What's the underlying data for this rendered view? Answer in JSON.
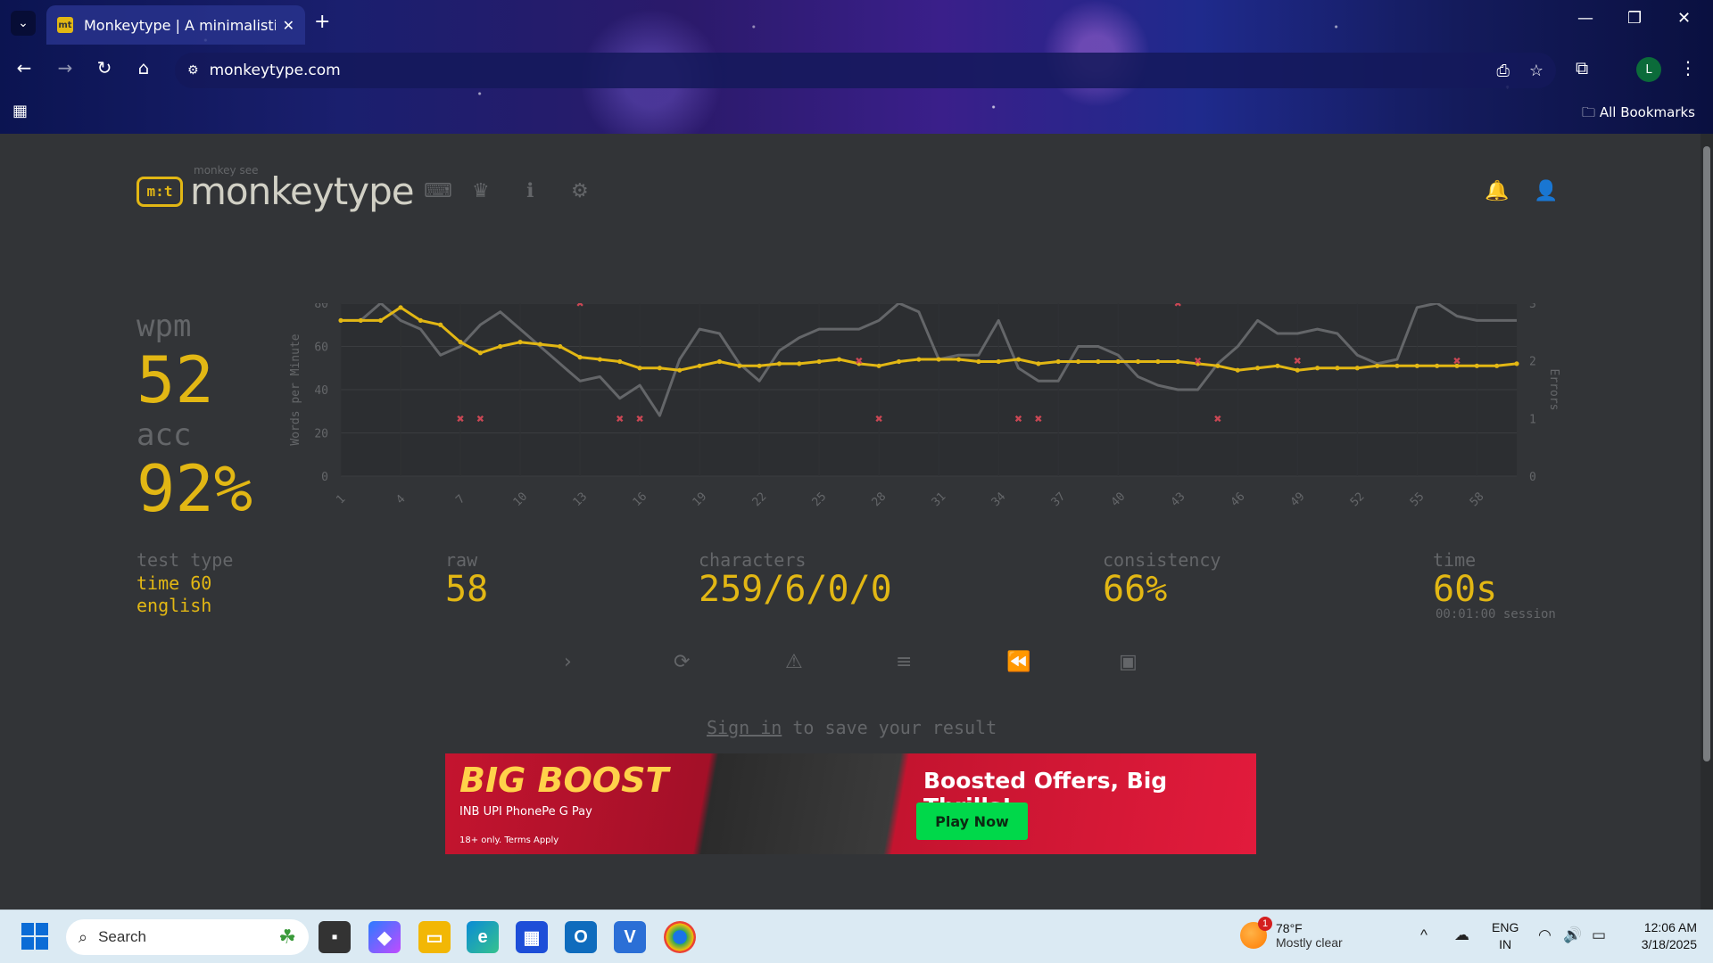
{
  "browser": {
    "tab_title": "Monkeytype | A minimalistic, cu",
    "tab_favicon": "mt",
    "url": "monkeytype.com",
    "profile_initial": "L",
    "all_bookmarks": "All Bookmarks"
  },
  "site": {
    "logo_small": "monkey see",
    "logo_text": "monkeytype",
    "logo_badge": "m:t"
  },
  "stats": {
    "wpm_label": "wpm",
    "wpm": "52",
    "acc_label": "acc",
    "acc": "92%",
    "test_type_label": "test type",
    "test_type_line1": "time 60",
    "test_type_line2": "english",
    "raw_label": "raw",
    "raw": "58",
    "characters_label": "characters",
    "characters": "259/6/0/0",
    "consistency_label": "consistency",
    "consistency": "66%",
    "time_label": "time",
    "time": "60s",
    "session": "00:01:00 session"
  },
  "chart_data": {
    "type": "line",
    "ylabel": "Words per Minute",
    "y2label": "Errors",
    "ylim": [
      0,
      80
    ],
    "y2lim": [
      0,
      3
    ],
    "y_ticks": [
      0,
      20,
      40,
      60,
      80
    ],
    "y2_ticks": [
      0,
      1,
      2,
      3
    ],
    "x_ticks": [
      1,
      4,
      7,
      10,
      13,
      16,
      19,
      22,
      25,
      28,
      31,
      34,
      37,
      40,
      43,
      46,
      49,
      52,
      55,
      58
    ],
    "x": [
      1,
      2,
      3,
      4,
      5,
      6,
      7,
      8,
      9,
      10,
      11,
      12,
      13,
      14,
      15,
      16,
      17,
      18,
      19,
      20,
      21,
      22,
      23,
      24,
      25,
      26,
      27,
      28,
      29,
      30,
      31,
      32,
      33,
      34,
      35,
      36,
      37,
      38,
      39,
      40,
      41,
      42,
      43,
      44,
      45,
      46,
      47,
      48,
      49,
      50,
      51,
      52,
      53,
      54,
      55,
      56,
      57,
      58,
      59,
      60
    ],
    "series": [
      {
        "name": "wpm",
        "color": "#e2b714",
        "values": [
          72,
          72,
          72,
          78,
          72,
          70,
          62,
          57,
          60,
          62,
          61,
          60,
          55,
          54,
          53,
          50,
          50,
          49,
          51,
          53,
          51,
          51,
          52,
          52,
          53,
          54,
          52,
          51,
          53,
          54,
          54,
          54,
          53,
          53,
          54,
          52,
          53,
          53,
          53,
          53,
          53,
          53,
          53,
          52,
          51,
          49,
          50,
          51,
          49,
          50,
          50,
          50,
          51,
          51,
          51,
          51,
          51,
          51,
          51,
          52
        ]
      },
      {
        "name": "raw",
        "color": "#646669",
        "values": [
          72,
          72,
          80,
          72,
          68,
          56,
          60,
          70,
          76,
          68,
          60,
          52,
          44,
          46,
          36,
          42,
          28,
          54,
          68,
          66,
          52,
          44,
          58,
          64,
          68,
          68,
          68,
          72,
          80,
          76,
          54,
          56,
          56,
          72,
          50,
          44,
          44,
          60,
          60,
          56,
          46,
          42,
          40,
          40,
          52,
          60,
          72,
          66,
          66,
          68,
          66,
          56,
          52,
          54,
          78,
          80,
          74,
          72,
          72,
          72
        ]
      }
    ],
    "errors": [
      {
        "x": 7,
        "y": 1
      },
      {
        "x": 8,
        "y": 1
      },
      {
        "x": 13,
        "y": 3
      },
      {
        "x": 15,
        "y": 1
      },
      {
        "x": 16,
        "y": 1
      },
      {
        "x": 27,
        "y": 2
      },
      {
        "x": 28,
        "y": 1
      },
      {
        "x": 35,
        "y": 1
      },
      {
        "x": 36,
        "y": 1
      },
      {
        "x": 43,
        "y": 3
      },
      {
        "x": 44,
        "y": 2
      },
      {
        "x": 45,
        "y": 1
      },
      {
        "x": 49,
        "y": 2
      },
      {
        "x": 57,
        "y": 2
      }
    ],
    "error_color": "#ca4754",
    "grid": true
  },
  "actions": {
    "sign_in_link": "Sign in",
    "sign_in_rest": " to save your result"
  },
  "ad": {
    "brand": "BIG BOOST",
    "payments": "INB    UPI    PhonePe    G Pay",
    "terms": "18+ only. Terms Apply",
    "headline": "Boosted Offers, Big Thrills!",
    "cta": "Play Now"
  },
  "taskbar": {
    "search_placeholder": "Search",
    "weather_temp": "78°F",
    "weather_desc": "Mostly clear",
    "weather_badge": "1",
    "lang_1": "ENG",
    "lang_2": "IN",
    "time": "12:06 AM",
    "date": "3/18/2025"
  },
  "colors": {
    "accent": "#e2b714",
    "sub": "#646669",
    "bg": "#323437",
    "text": "#d1d0c5"
  }
}
